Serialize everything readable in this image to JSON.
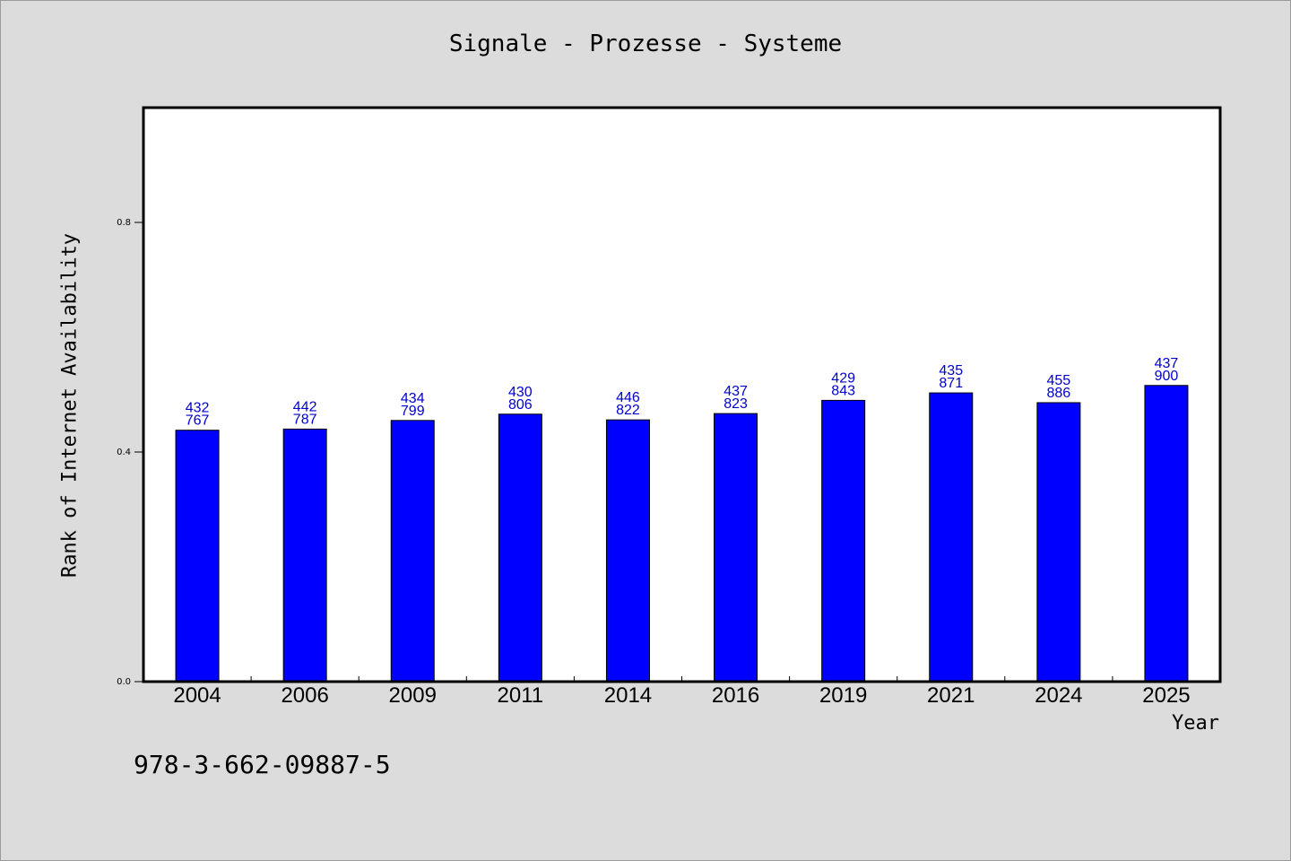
{
  "chart_data": {
    "type": "bar",
    "title": "Signale - Prozesse - Systeme",
    "xlabel": "Year",
    "ylabel": "Rank of Internet Availability",
    "categories": [
      "2004",
      "2006",
      "2009",
      "2011",
      "2014",
      "2016",
      "2019",
      "2021",
      "2024",
      "2025"
    ],
    "values": [
      0.438,
      0.44,
      0.455,
      0.466,
      0.456,
      0.467,
      0.49,
      0.503,
      0.486,
      0.516
    ],
    "bar_labels": [
      [
        "432",
        "767"
      ],
      [
        "442",
        "787"
      ],
      [
        "434",
        "799"
      ],
      [
        "430",
        "806"
      ],
      [
        "446",
        "822"
      ],
      [
        "437",
        "823"
      ],
      [
        "429",
        "843"
      ],
      [
        "435",
        "871"
      ],
      [
        "455",
        "886"
      ],
      [
        "437",
        "900"
      ]
    ],
    "yticks": [
      0.0,
      0.4,
      0.8
    ],
    "ytick_labels": [
      "0.0",
      "0.4",
      "0.8"
    ],
    "ylim": [
      0,
      1.0
    ],
    "grid": false,
    "legend": "none",
    "bar_color": "#0000ff",
    "label_color": "#0000cc"
  },
  "footer": {
    "code": "978-3-662-09887-5"
  }
}
